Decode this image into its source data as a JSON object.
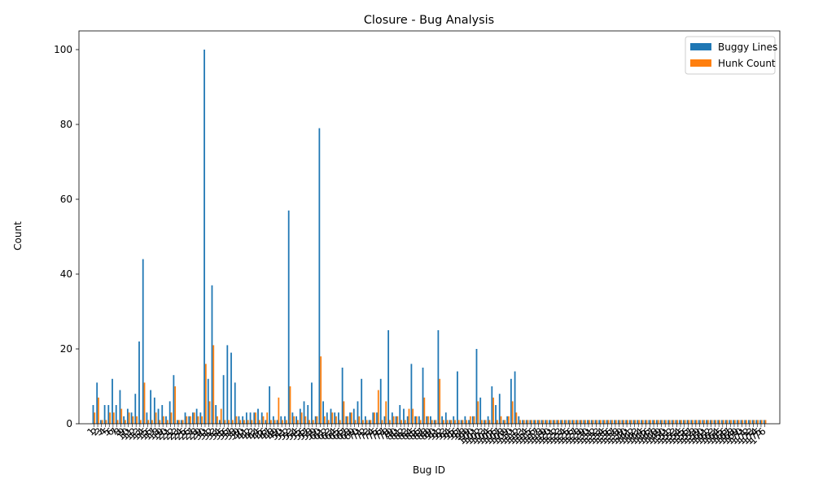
{
  "chart_data": {
    "type": "bar",
    "title": "Closure - Bug Analysis",
    "xlabel": "Bug ID",
    "ylabel": "Count",
    "ylim": [
      0,
      105
    ],
    "yticks": [
      0,
      20,
      40,
      60,
      80,
      100
    ],
    "grid": false,
    "legend_position": "top-right",
    "x_tick_labels_visible": [
      "1",
      "2",
      "3",
      "4",
      "5",
      "6",
      "7",
      "8",
      "9",
      "10",
      "11",
      "12",
      "13",
      "14",
      "15",
      "16",
      "17",
      "18",
      "19",
      "20",
      "21",
      "22",
      "23",
      "24",
      "25",
      "26",
      "27",
      "28",
      "29",
      "30",
      "31",
      "32",
      "33",
      "34",
      "35",
      "36",
      "37",
      "38",
      "39",
      "40",
      "41",
      "42",
      "43",
      "44",
      "45",
      "46",
      "47",
      "48",
      "49",
      "50",
      "51",
      "52",
      "53",
      "54",
      "55",
      "56",
      "57",
      "58",
      "59",
      "60",
      "61",
      "62",
      "63",
      "64",
      "65",
      "66",
      "67",
      "68",
      "69",
      "70",
      "71",
      "72",
      "73",
      "74",
      "75",
      "76",
      "77",
      "78",
      "79",
      "80",
      "81",
      "82",
      "83",
      "84",
      "85",
      "86",
      "87",
      "88",
      "89",
      "90",
      "91",
      "92",
      "93",
      "94",
      "95",
      "96",
      "97",
      "98",
      "99",
      "100",
      "101",
      "102",
      "103",
      "104",
      "105",
      "106",
      "107",
      "108",
      "109",
      "110",
      "111",
      "112",
      "113",
      "114",
      "115",
      "116",
      "117",
      "118",
      "119",
      "120",
      "121",
      "122",
      "123",
      "124",
      "125",
      "126",
      "127",
      "128",
      "129",
      "130",
      "131",
      "132",
      "133",
      "134",
      "135",
      "136",
      "137",
      "138",
      "139",
      "140",
      "141",
      "142",
      "143",
      "144",
      "145",
      "146",
      "147",
      "148",
      "149",
      "150",
      "151",
      "152",
      "153",
      "154",
      "155",
      "156",
      "157",
      "158",
      "159",
      "160",
      "161",
      "162",
      "163",
      "164",
      "165",
      "166",
      "167",
      "168",
      "169",
      "170",
      "171",
      "172",
      "173",
      "174",
      "175",
      "176"
    ],
    "series": [
      {
        "name": "Buggy Lines",
        "color": "#1f77b4",
        "values": [
          5,
          11,
          1,
          5,
          5,
          12,
          5,
          9,
          2,
          4,
          3,
          8,
          22,
          44,
          3,
          9,
          7,
          4,
          5,
          2,
          6,
          13,
          1,
          1,
          3,
          2,
          3,
          4,
          3,
          100,
          12,
          37,
          5,
          1,
          13,
          21,
          19,
          11,
          2,
          2,
          3,
          3,
          3,
          4,
          3,
          1,
          10,
          2,
          1,
          2,
          2,
          57,
          3,
          2,
          4,
          6,
          5,
          11,
          2,
          79,
          6,
          3,
          4,
          3,
          3,
          15,
          2,
          3,
          4,
          6,
          12,
          2,
          1,
          3,
          3,
          12,
          2,
          25,
          3,
          2,
          5,
          4,
          2,
          16,
          2,
          2,
          15,
          2,
          2,
          1,
          25,
          2,
          3,
          1,
          2,
          14,
          1,
          2,
          1,
          2,
          20,
          7,
          1,
          2,
          10,
          5,
          8,
          1,
          2,
          12,
          14,
          2,
          1,
          1,
          1,
          1,
          1,
          1,
          1,
          1,
          1,
          1,
          1,
          1,
          1,
          1,
          1,
          1,
          1,
          1,
          1,
          1,
          1,
          1,
          1,
          1,
          1,
          1,
          1,
          1,
          1,
          1,
          1,
          1,
          1,
          1,
          1,
          1,
          1,
          1,
          1,
          1,
          1,
          1,
          1,
          1,
          1,
          1,
          1,
          1,
          1,
          1,
          1,
          1,
          1,
          1,
          1,
          1,
          1,
          1,
          1,
          1,
          1,
          1,
          1,
          1
        ]
      },
      {
        "name": "Hunk Count",
        "color": "#ff7f0e",
        "values": [
          3,
          7,
          1,
          1,
          3,
          3,
          1,
          4,
          1,
          3,
          2,
          2,
          1,
          11,
          1,
          1,
          3,
          1,
          2,
          1,
          3,
          10,
          1,
          1,
          2,
          2,
          3,
          2,
          2,
          16,
          6,
          21,
          2,
          4,
          1,
          1,
          1,
          2,
          1,
          1,
          1,
          1,
          3,
          1,
          2,
          3,
          1,
          1,
          7,
          1,
          1,
          10,
          2,
          1,
          3,
          2,
          1,
          1,
          2,
          18,
          2,
          1,
          3,
          2,
          1,
          6,
          2,
          3,
          1,
          2,
          1,
          1,
          1,
          3,
          9,
          1,
          6,
          1,
          2,
          2,
          1,
          1,
          4,
          4,
          2,
          1,
          7,
          2,
          1,
          1,
          12,
          1,
          1,
          1,
          1,
          1,
          1,
          1,
          2,
          2,
          6,
          1,
          1,
          1,
          7,
          1,
          2,
          1,
          2,
          6,
          3,
          1,
          1,
          1,
          1,
          1,
          1,
          1,
          1,
          1,
          1,
          1,
          1,
          1,
          1,
          1,
          1,
          1,
          1,
          1,
          1,
          1,
          1,
          1,
          1,
          1,
          1,
          1,
          1,
          1,
          1,
          1,
          1,
          1,
          1,
          1,
          1,
          1,
          1,
          1,
          1,
          1,
          1,
          1,
          1,
          1,
          1,
          1,
          1,
          1,
          1,
          1,
          1,
          1,
          1,
          1,
          1,
          1,
          1,
          1,
          1,
          1,
          1,
          1,
          1,
          1
        ]
      }
    ]
  }
}
